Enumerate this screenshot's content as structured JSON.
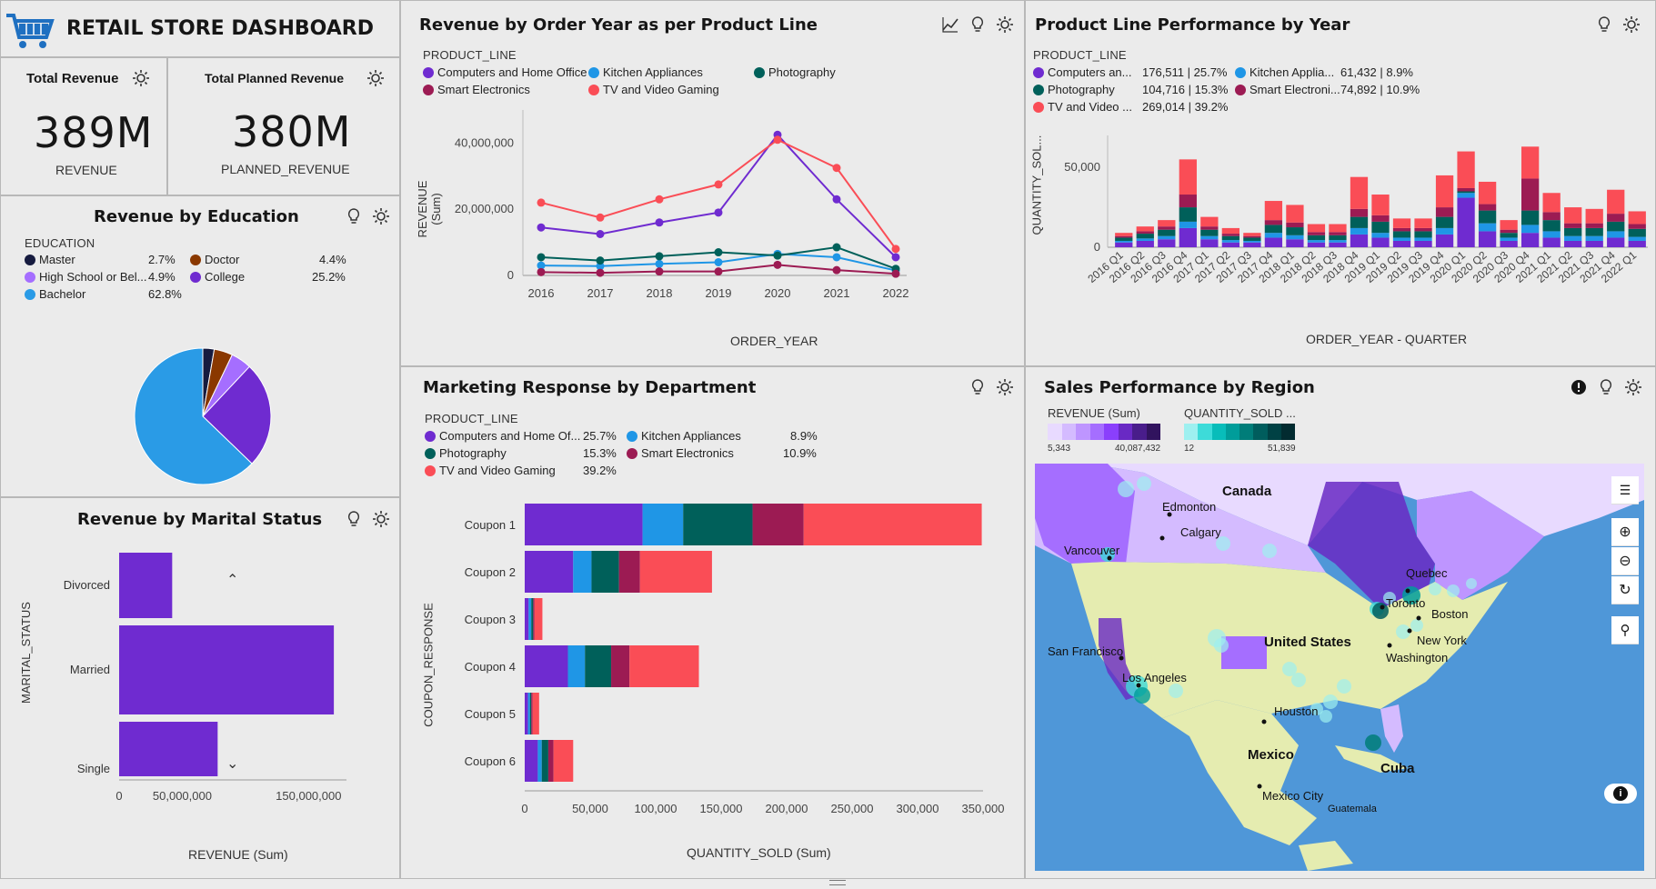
{
  "header": {
    "title": "RETAIL STORE DASHBOARD",
    "icon": "shopping-cart-icon"
  },
  "kpi": {
    "total_revenue": {
      "label": "Total Revenue",
      "value": "389M",
      "sub": "REVENUE"
    },
    "planned_revenue": {
      "label": "Total Planned Revenue",
      "value": "380M",
      "sub": "PLANNED_REVENUE"
    }
  },
  "colors": {
    "computers": "#6f2bd0",
    "kitchen": "#1f96e6",
    "photography": "#00605a",
    "smart": "#9c1b53",
    "tv": "#fa4d56",
    "accent": "#6f2bd0"
  },
  "education": {
    "title": "Revenue by Education",
    "legend_title": "EDUCATION",
    "items": [
      {
        "label": "Master",
        "pct": "2.7%",
        "color": "#161b3f"
      },
      {
        "label": "Doctor",
        "pct": "4.4%",
        "color": "#8a3800"
      },
      {
        "label": "High School or Bel...",
        "pct": "4.9%",
        "color": "#a56eff"
      },
      {
        "label": "College",
        "pct": "25.2%",
        "color": "#6f2bd0"
      },
      {
        "label": "Bachelor",
        "pct": "62.8%",
        "color": "#2a9be6"
      }
    ]
  },
  "marital": {
    "title": "Revenue by Marital Status",
    "ylabel": "MARITAL_STATUS",
    "xlabel": "REVENUE (Sum)",
    "ticks": [
      "0",
      "50,000,000",
      "150,000,000"
    ]
  },
  "revenue_year": {
    "title": "Revenue by Order Year as per Product Line",
    "legend_title": "PRODUCT_LINE",
    "legend": [
      "Computers and Home Office",
      "Kitchen Appliances",
      "Photography",
      "Smart Electronics",
      "TV and Video Gaming"
    ],
    "xlabel": "ORDER_YEAR",
    "ylabel": "REVENUE (Sum)",
    "yticks": [
      "0",
      "20,000,000",
      "40,000,000"
    ]
  },
  "product_perf": {
    "title": "Product Line Performance by Year",
    "legend_title": "PRODUCT_LINE",
    "legend": [
      {
        "label": "Computers an...",
        "value": "176,511 | 25.7%"
      },
      {
        "label": "Kitchen Applia...",
        "value": "61,432 | 8.9%"
      },
      {
        "label": "Photography",
        "value": "104,716 | 15.3%"
      },
      {
        "label": "Smart Electroni...",
        "value": "74,892 | 10.9%"
      },
      {
        "label": "TV and Video ...",
        "value": "269,014 | 39.2%"
      }
    ],
    "ylabel": "QUANTITY_SOL...",
    "xlabel": "ORDER_YEAR - QUARTER",
    "yticks": [
      "0",
      "50,000"
    ]
  },
  "marketing": {
    "title": "Marketing Response by Department",
    "legend_title": "PRODUCT_LINE",
    "legend": [
      {
        "label": "Computers and Home Of...",
        "pct": "25.7%"
      },
      {
        "label": "Kitchen Appliances",
        "pct": "8.9%"
      },
      {
        "label": "Photography",
        "pct": "15.3%"
      },
      {
        "label": "Smart Electronics",
        "pct": "10.9%"
      },
      {
        "label": "TV and Video Gaming",
        "pct": "39.2%"
      }
    ],
    "ylabel": "COUPON_RESPONSE",
    "xlabel": "QUANTITY_SOLD (Sum)",
    "xticks": [
      "0",
      "50,000",
      "100,000",
      "150,000",
      "200,000",
      "250,000",
      "300,000",
      "350,000"
    ]
  },
  "region": {
    "title": "Sales Performance by Region",
    "revenue_legend": {
      "label": "REVENUE (Sum)",
      "min": "5,343",
      "max": "40,087,432"
    },
    "qty_legend": {
      "label": "QUANTITY_SOLD ...",
      "min": "12",
      "max": "51,839"
    },
    "labels": {
      "canada": "Canada",
      "edmonton": "Edmonton",
      "calgary": "Calgary",
      "vancouver": "Vancouver",
      "quebec": "Quebec",
      "toronto": "Toronto",
      "boston": "Boston",
      "newyork": "New York",
      "washington": "Washington",
      "usa": "United States",
      "sf": "San Francisco",
      "la": "Los Angeles",
      "houston": "Houston",
      "mexico": "Mexico",
      "cuba": "Cuba",
      "mexicocity": "Mexico City",
      "guatemala": "Guatemala"
    }
  },
  "chart_data": [
    {
      "type": "line",
      "title": "Revenue by Order Year as per Product Line",
      "xlabel": "ORDER_YEAR",
      "ylabel": "REVENUE (Sum)",
      "x": [
        2016,
        2017,
        2018,
        2019,
        2020,
        2021,
        2022
      ],
      "ylim": [
        0,
        50000000
      ],
      "series": [
        {
          "name": "Computers and Home Office",
          "values": [
            14500000,
            12500000,
            16000000,
            19000000,
            42500000,
            23000000,
            5500000
          ]
        },
        {
          "name": "Kitchen Appliances",
          "values": [
            3000000,
            2800000,
            3500000,
            4000000,
            6500000,
            5500000,
            1500000
          ]
        },
        {
          "name": "Photography",
          "values": [
            5500000,
            4500000,
            5800000,
            7000000,
            6000000,
            8500000,
            2000000
          ]
        },
        {
          "name": "Smart Electronics",
          "values": [
            1000000,
            800000,
            1200000,
            1200000,
            3200000,
            1600000,
            500000
          ]
        },
        {
          "name": "TV and Video Gaming",
          "values": [
            22000000,
            17500000,
            23000000,
            27500000,
            41000000,
            32500000,
            8000000
          ]
        }
      ]
    },
    {
      "type": "bar",
      "title": "Product Line Performance by Year",
      "xlabel": "ORDER_YEAR - QUARTER",
      "ylabel": "QUANTITY_SOL...",
      "categories": [
        "2016 Q1",
        "2016 Q2",
        "2016 Q3",
        "2016 Q4",
        "2017 Q1",
        "2017 Q2",
        "2017 Q3",
        "2017 Q4",
        "2018 Q1",
        "2018 Q2",
        "2018 Q3",
        "2018 Q4",
        "2019 Q1",
        "2019 Q2",
        "2019 Q3",
        "2019 Q4",
        "2020 Q1",
        "2020 Q2",
        "2020 Q3",
        "2020 Q4",
        "2021 Q1",
        "2021 Q2",
        "2021 Q3",
        "2021 Q4",
        "2022 Q1"
      ],
      "ylim": [
        0,
        70000
      ],
      "series": [
        {
          "name": "Computers and Home Office",
          "values": [
            3000,
            4000,
            5000,
            12000,
            5000,
            3000,
            3000,
            6000,
            5000,
            3000,
            3000,
            8000,
            6000,
            4000,
            4000,
            8000,
            31000,
            10000,
            4000,
            9000,
            6000,
            4000,
            4000,
            6000,
            4000
          ]
        },
        {
          "name": "Kitchen Appliances",
          "values": [
            1000,
            1500,
            2000,
            4000,
            2000,
            1500,
            1000,
            3000,
            2500,
            1500,
            1500,
            4000,
            3000,
            2000,
            2000,
            4000,
            3000,
            5000,
            2000,
            5000,
            4000,
            3000,
            3000,
            4000,
            2500
          ]
        },
        {
          "name": "Photography",
          "values": [
            2000,
            3000,
            4000,
            9000,
            4000,
            2500,
            2000,
            5000,
            5000,
            3000,
            3000,
            7000,
            7000,
            4000,
            4000,
            7000,
            1000,
            8000,
            3000,
            9000,
            7000,
            5000,
            5000,
            6000,
            5000
          ]
        },
        {
          "name": "Smart Electronics",
          "values": [
            1000,
            1500,
            2000,
            8000,
            2000,
            1500,
            1000,
            3000,
            3000,
            2000,
            2000,
            5000,
            4000,
            2000,
            2000,
            6000,
            2000,
            4000,
            2000,
            20000,
            5000,
            3000,
            3000,
            5000,
            3000
          ]
        },
        {
          "name": "TV and Video Gaming",
          "values": [
            2000,
            3000,
            4000,
            22000,
            6000,
            3500,
            2000,
            12000,
            11000,
            5000,
            5000,
            20000,
            13000,
            6000,
            6000,
            20000,
            23000,
            14000,
            6000,
            20000,
            12000,
            10000,
            9000,
            15000,
            8000
          ]
        }
      ]
    },
    {
      "type": "bar",
      "title": "Marketing Response by Department",
      "xlabel": "QUANTITY_SOLD (Sum)",
      "ylabel": "COUPON_RESPONSE",
      "categories": [
        "Coupon 1",
        "Coupon 2",
        "Coupon 3",
        "Coupon 4",
        "Coupon 5",
        "Coupon 6"
      ],
      "xlim": [
        0,
        350000
      ],
      "series": [
        {
          "name": "Computers and Home Office",
          "values": [
            90000,
            37000,
            3000,
            33000,
            2500,
            10000
          ]
        },
        {
          "name": "Kitchen Appliances",
          "values": [
            31000,
            14000,
            2000,
            13000,
            1500,
            3000
          ]
        },
        {
          "name": "Photography",
          "values": [
            53000,
            21000,
            1500,
            20000,
            1000,
            5000
          ]
        },
        {
          "name": "Smart Electronics",
          "values": [
            39000,
            16000,
            1000,
            14000,
            1000,
            4000
          ]
        },
        {
          "name": "TV and Video Gaming",
          "values": [
            136000,
            55000,
            6000,
            53000,
            5000,
            15000
          ]
        }
      ]
    },
    {
      "type": "bar",
      "title": "Revenue by Marital Status",
      "xlabel": "REVENUE (Sum)",
      "ylabel": "MARITAL_STATUS",
      "categories": [
        "Divorced",
        "Married",
        "Single"
      ],
      "values": [
        42000000,
        170000000,
        78000000
      ],
      "xlim": [
        0,
        180000000
      ]
    },
    {
      "type": "pie",
      "title": "Revenue by Education",
      "categories": [
        "Master",
        "Doctor",
        "High School or Bel...",
        "College",
        "Bachelor"
      ],
      "values": [
        2.7,
        4.4,
        4.9,
        25.2,
        62.8
      ]
    }
  ]
}
